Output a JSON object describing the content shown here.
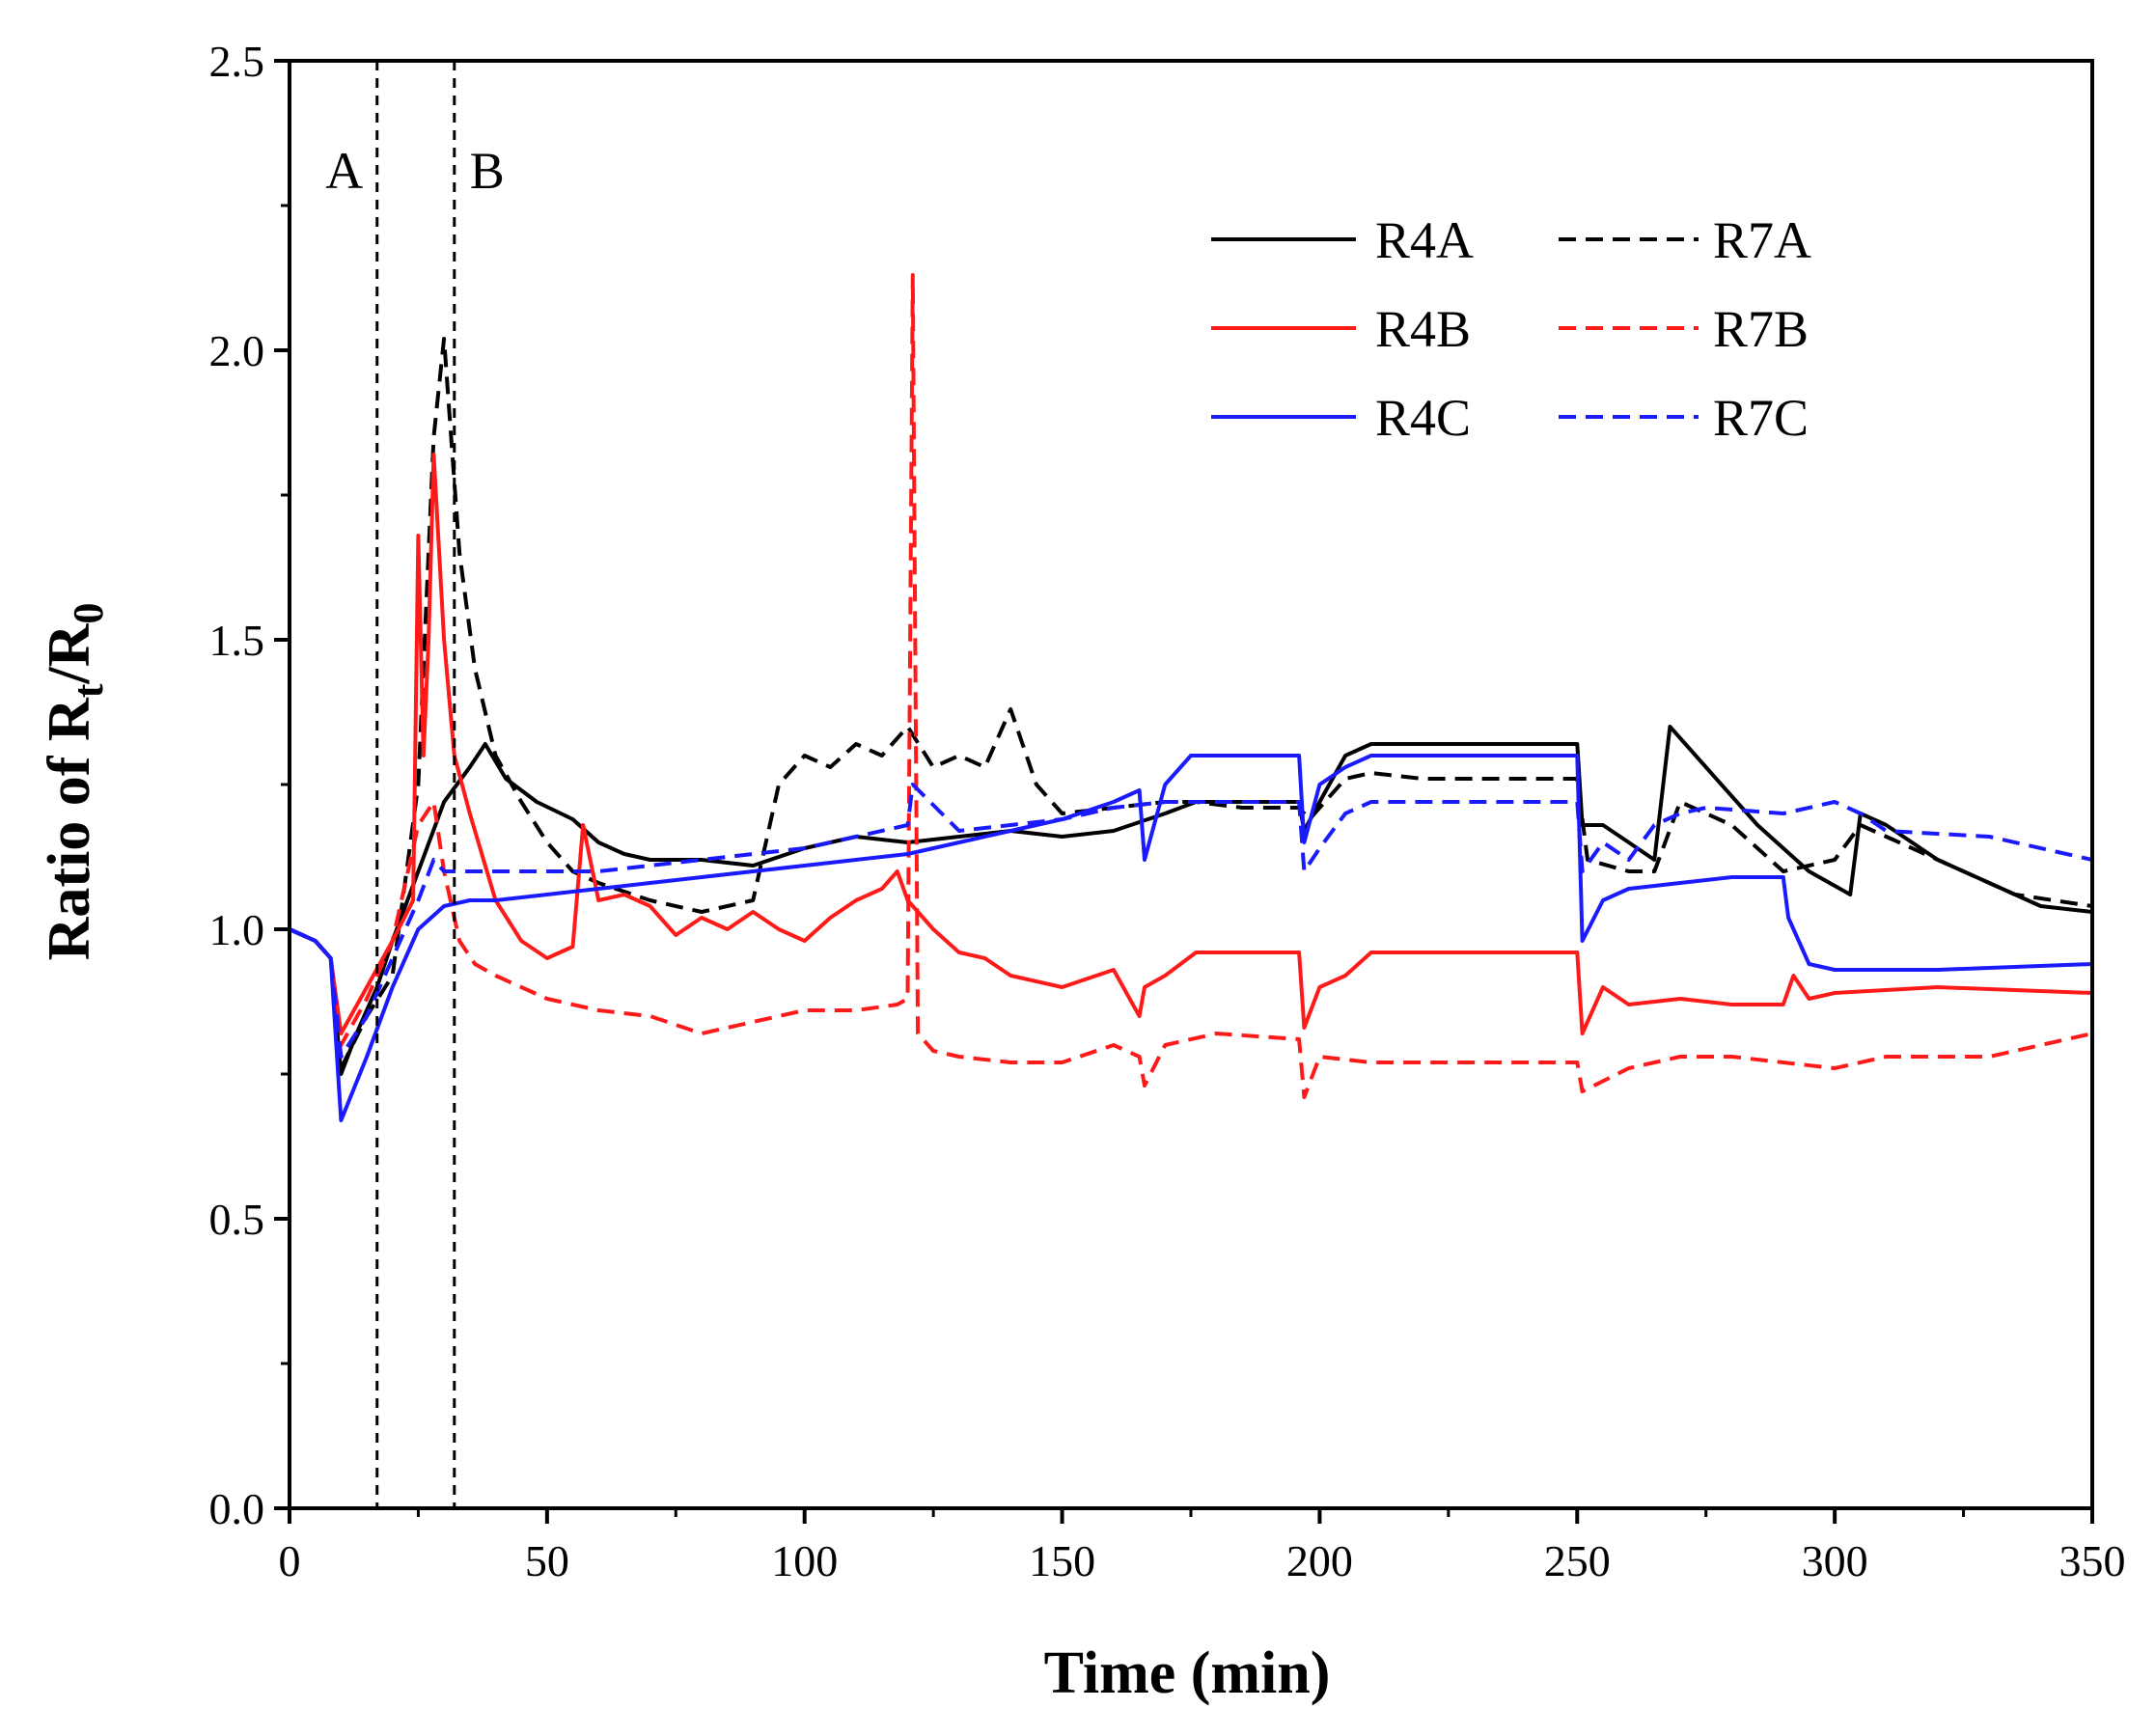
{
  "chart_data": {
    "type": "line",
    "title": "",
    "xlabel": "Time (min)",
    "ylabel_parts": {
      "prefix": "Ratio of R",
      "sub1": "t",
      "mid": "/R",
      "sub2": "0"
    },
    "xlim": [
      0,
      350
    ],
    "ylim": [
      0,
      2.5
    ],
    "xticks": [
      0,
      50,
      100,
      150,
      200,
      250,
      300,
      350
    ],
    "xtick_labels": [
      "0",
      "50",
      "100",
      "150",
      "200",
      "250",
      "300",
      "350"
    ],
    "yticks": [
      0,
      0.5,
      1.0,
      1.5,
      2.0,
      2.5
    ],
    "ytick_labels": [
      "0.0",
      "0.5",
      "1.0",
      "1.5",
      "2.0",
      "2.5"
    ],
    "grid": false,
    "legend_position": "top-right",
    "markers": [
      {
        "label": "A",
        "x": 17
      },
      {
        "label": "B",
        "x": 32
      }
    ],
    "series": [
      {
        "name": "R4A",
        "color": "#000000",
        "style": "solid",
        "x": [
          0,
          5,
          8,
          10,
          13,
          17,
          20,
          25,
          30,
          35,
          38,
          42,
          48,
          55,
          60,
          65,
          70,
          80,
          90,
          100,
          110,
          120,
          130,
          140,
          150,
          160,
          170,
          176,
          185,
          196,
          197,
          200,
          205,
          210,
          220,
          240,
          250,
          251,
          255,
          260,
          265,
          268,
          275,
          285,
          295,
          303,
          305,
          310,
          320,
          340,
          350
        ],
        "y": [
          1.0,
          0.98,
          0.95,
          0.75,
          0.82,
          0.9,
          0.98,
          1.1,
          1.22,
          1.28,
          1.32,
          1.26,
          1.22,
          1.19,
          1.15,
          1.13,
          1.12,
          1.12,
          1.11,
          1.14,
          1.16,
          1.15,
          1.16,
          1.17,
          1.16,
          1.17,
          1.2,
          1.22,
          1.22,
          1.22,
          1.17,
          1.22,
          1.3,
          1.32,
          1.32,
          1.32,
          1.32,
          1.18,
          1.18,
          1.15,
          1.12,
          1.35,
          1.28,
          1.18,
          1.1,
          1.06,
          1.2,
          1.18,
          1.12,
          1.04,
          1.03
        ]
      },
      {
        "name": "R7A",
        "color": "#000000",
        "style": "dashed",
        "x": [
          0,
          5,
          8,
          10,
          15,
          20,
          25,
          28,
          30,
          33,
          36,
          40,
          45,
          50,
          55,
          60,
          70,
          80,
          90,
          95,
          100,
          105,
          110,
          115,
          120,
          125,
          130,
          135,
          140,
          145,
          150,
          160,
          170,
          176,
          185,
          196,
          198,
          205,
          210,
          220,
          240,
          250,
          252,
          260,
          265,
          270,
          275,
          280,
          290,
          300,
          305,
          310,
          320,
          335,
          350
        ],
        "y": [
          1.0,
          0.98,
          0.95,
          0.76,
          0.85,
          0.92,
          1.25,
          1.85,
          2.02,
          1.65,
          1.45,
          1.3,
          1.22,
          1.15,
          1.1,
          1.08,
          1.05,
          1.03,
          1.05,
          1.25,
          1.3,
          1.28,
          1.32,
          1.3,
          1.35,
          1.28,
          1.3,
          1.28,
          1.38,
          1.25,
          1.2,
          1.21,
          1.22,
          1.22,
          1.21,
          1.21,
          1.19,
          1.26,
          1.27,
          1.26,
          1.26,
          1.26,
          1.12,
          1.1,
          1.1,
          1.22,
          1.2,
          1.18,
          1.1,
          1.12,
          1.18,
          1.16,
          1.12,
          1.06,
          1.04
        ]
      },
      {
        "name": "R4B",
        "color": "#ff1a1a",
        "style": "solid",
        "x": [
          0,
          5,
          8,
          10,
          15,
          20,
          24,
          25,
          26,
          27,
          28,
          30,
          32,
          35,
          40,
          45,
          50,
          55,
          57,
          60,
          65,
          70,
          75,
          80,
          85,
          90,
          95,
          100,
          105,
          110,
          115,
          118,
          120,
          125,
          130,
          135,
          140,
          150,
          160,
          165,
          166,
          170,
          176,
          180,
          196,
          197,
          200,
          205,
          210,
          220,
          240,
          250,
          251,
          255,
          260,
          270,
          280,
          290,
          292,
          295,
          300,
          320,
          350
        ],
        "y": [
          1.0,
          0.98,
          0.95,
          0.82,
          0.9,
          0.98,
          1.05,
          1.68,
          1.3,
          1.5,
          1.82,
          1.5,
          1.3,
          1.2,
          1.05,
          0.98,
          0.95,
          0.97,
          1.18,
          1.05,
          1.06,
          1.04,
          0.99,
          1.02,
          1.0,
          1.03,
          1.0,
          0.98,
          1.02,
          1.05,
          1.07,
          1.1,
          1.05,
          1.0,
          0.96,
          0.95,
          0.92,
          0.9,
          0.93,
          0.85,
          0.9,
          0.92,
          0.96,
          0.96,
          0.96,
          0.83,
          0.9,
          0.92,
          0.96,
          0.96,
          0.96,
          0.96,
          0.82,
          0.9,
          0.87,
          0.88,
          0.87,
          0.87,
          0.92,
          0.88,
          0.89,
          0.9,
          0.89
        ]
      },
      {
        "name": "R7B",
        "color": "#ff1a1a",
        "style": "dashed",
        "x": [
          0,
          5,
          8,
          10,
          15,
          20,
          25,
          28,
          30,
          33,
          36,
          40,
          50,
          60,
          70,
          80,
          90,
          100,
          110,
          118,
          120,
          121,
          122,
          125,
          130,
          140,
          150,
          160,
          165,
          166,
          170,
          180,
          196,
          197,
          200,
          210,
          220,
          240,
          250,
          251,
          260,
          270,
          280,
          300,
          310,
          330,
          350
        ],
        "y": [
          1.0,
          0.98,
          0.95,
          0.8,
          0.88,
          0.98,
          1.18,
          1.22,
          1.1,
          0.98,
          0.94,
          0.92,
          0.88,
          0.86,
          0.85,
          0.82,
          0.84,
          0.86,
          0.86,
          0.87,
          0.88,
          2.13,
          0.82,
          0.79,
          0.78,
          0.77,
          0.77,
          0.8,
          0.78,
          0.73,
          0.8,
          0.82,
          0.81,
          0.71,
          0.78,
          0.77,
          0.77,
          0.77,
          0.77,
          0.72,
          0.76,
          0.78,
          0.78,
          0.76,
          0.78,
          0.78,
          0.82
        ]
      },
      {
        "name": "R4C",
        "color": "#1a1aff",
        "style": "solid",
        "x": [
          0,
          5,
          8,
          10,
          15,
          20,
          25,
          30,
          35,
          40,
          50,
          60,
          70,
          80,
          90,
          100,
          110,
          120,
          130,
          140,
          150,
          160,
          165,
          166,
          170,
          175,
          176,
          185,
          196,
          197,
          200,
          205,
          210,
          220,
          240,
          250,
          251,
          255,
          260,
          270,
          280,
          290,
          291,
          295,
          300,
          320,
          350
        ],
        "y": [
          1.0,
          0.98,
          0.95,
          0.67,
          0.78,
          0.9,
          1.0,
          1.04,
          1.05,
          1.05,
          1.06,
          1.07,
          1.08,
          1.09,
          1.1,
          1.11,
          1.12,
          1.13,
          1.15,
          1.17,
          1.19,
          1.22,
          1.24,
          1.12,
          1.25,
          1.3,
          1.3,
          1.3,
          1.3,
          1.15,
          1.25,
          1.28,
          1.3,
          1.3,
          1.3,
          1.3,
          0.98,
          1.05,
          1.07,
          1.08,
          1.09,
          1.09,
          1.02,
          0.94,
          0.93,
          0.93,
          0.94
        ]
      },
      {
        "name": "R7C",
        "color": "#1a1aff",
        "style": "dashed",
        "x": [
          0,
          5,
          8,
          10,
          15,
          20,
          25,
          28,
          30,
          35,
          40,
          50,
          60,
          70,
          80,
          90,
          100,
          110,
          120,
          121,
          130,
          140,
          150,
          160,
          170,
          176,
          185,
          196,
          197,
          200,
          205,
          210,
          220,
          240,
          250,
          251,
          255,
          260,
          265,
          270,
          275,
          290,
          300,
          305,
          310,
          330,
          350
        ],
        "y": [
          1.0,
          0.98,
          0.95,
          0.78,
          0.85,
          0.95,
          1.05,
          1.12,
          1.1,
          1.1,
          1.1,
          1.1,
          1.1,
          1.11,
          1.12,
          1.13,
          1.14,
          1.16,
          1.18,
          1.25,
          1.17,
          1.18,
          1.19,
          1.21,
          1.22,
          1.22,
          1.22,
          1.22,
          1.1,
          1.14,
          1.2,
          1.22,
          1.22,
          1.22,
          1.22,
          1.1,
          1.15,
          1.12,
          1.18,
          1.2,
          1.21,
          1.2,
          1.22,
          1.2,
          1.17,
          1.16,
          1.12
        ]
      }
    ]
  }
}
